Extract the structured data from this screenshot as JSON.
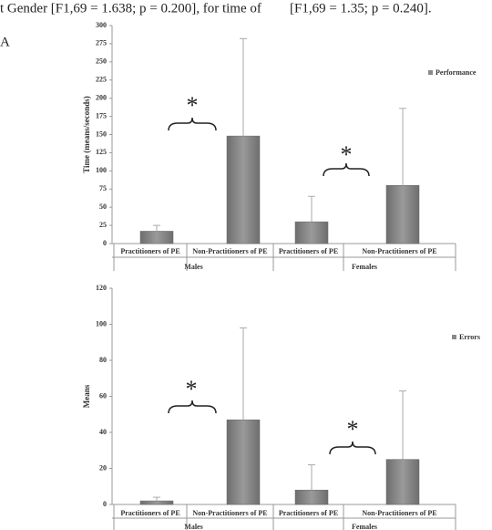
{
  "text": [
    "t Gender [F1,69 = 1.638; p = 0.200], for time of",
    "[F1,69 = 1.35; p = 0.240]."
  ],
  "panel_label": "A",
  "chart_data": [
    {
      "type": "bar",
      "ylabel": "Time (means/seconds)",
      "categories": [
        "Practitioners of PE",
        "Non-Practitioners of PE",
        "Practitioners of PE",
        "Non-Practitioners of PE"
      ],
      "groups": [
        "Males",
        "Females"
      ],
      "series": [
        {
          "name": "Performance",
          "color": "#8a8a8a",
          "values": [
            17,
            148,
            30,
            80
          ],
          "errors": [
            8,
            134,
            35,
            106
          ]
        }
      ],
      "ylim": [
        0,
        300
      ],
      "yticks": [
        0,
        25,
        50,
        75,
        100,
        125,
        150,
        175,
        200,
        225,
        250,
        275,
        300
      ],
      "annotations": [
        "*",
        "*"
      ]
    },
    {
      "type": "bar",
      "ylabel": "Means",
      "categories": [
        "Practitioners of PE",
        "Non-Practitioners of PE",
        "Practitioners of PE",
        "Non-Practitioners of PE"
      ],
      "groups": [
        "Males",
        "Females"
      ],
      "series": [
        {
          "name": "Errors",
          "color": "#8a8a8a",
          "values": [
            2,
            47,
            8,
            25
          ],
          "errors": [
            2,
            51,
            14,
            38
          ]
        }
      ],
      "ylim": [
        0,
        120
      ],
      "yticks": [
        0,
        20,
        40,
        60,
        80,
        100,
        120
      ],
      "annotations": [
        "*",
        "*"
      ]
    }
  ]
}
